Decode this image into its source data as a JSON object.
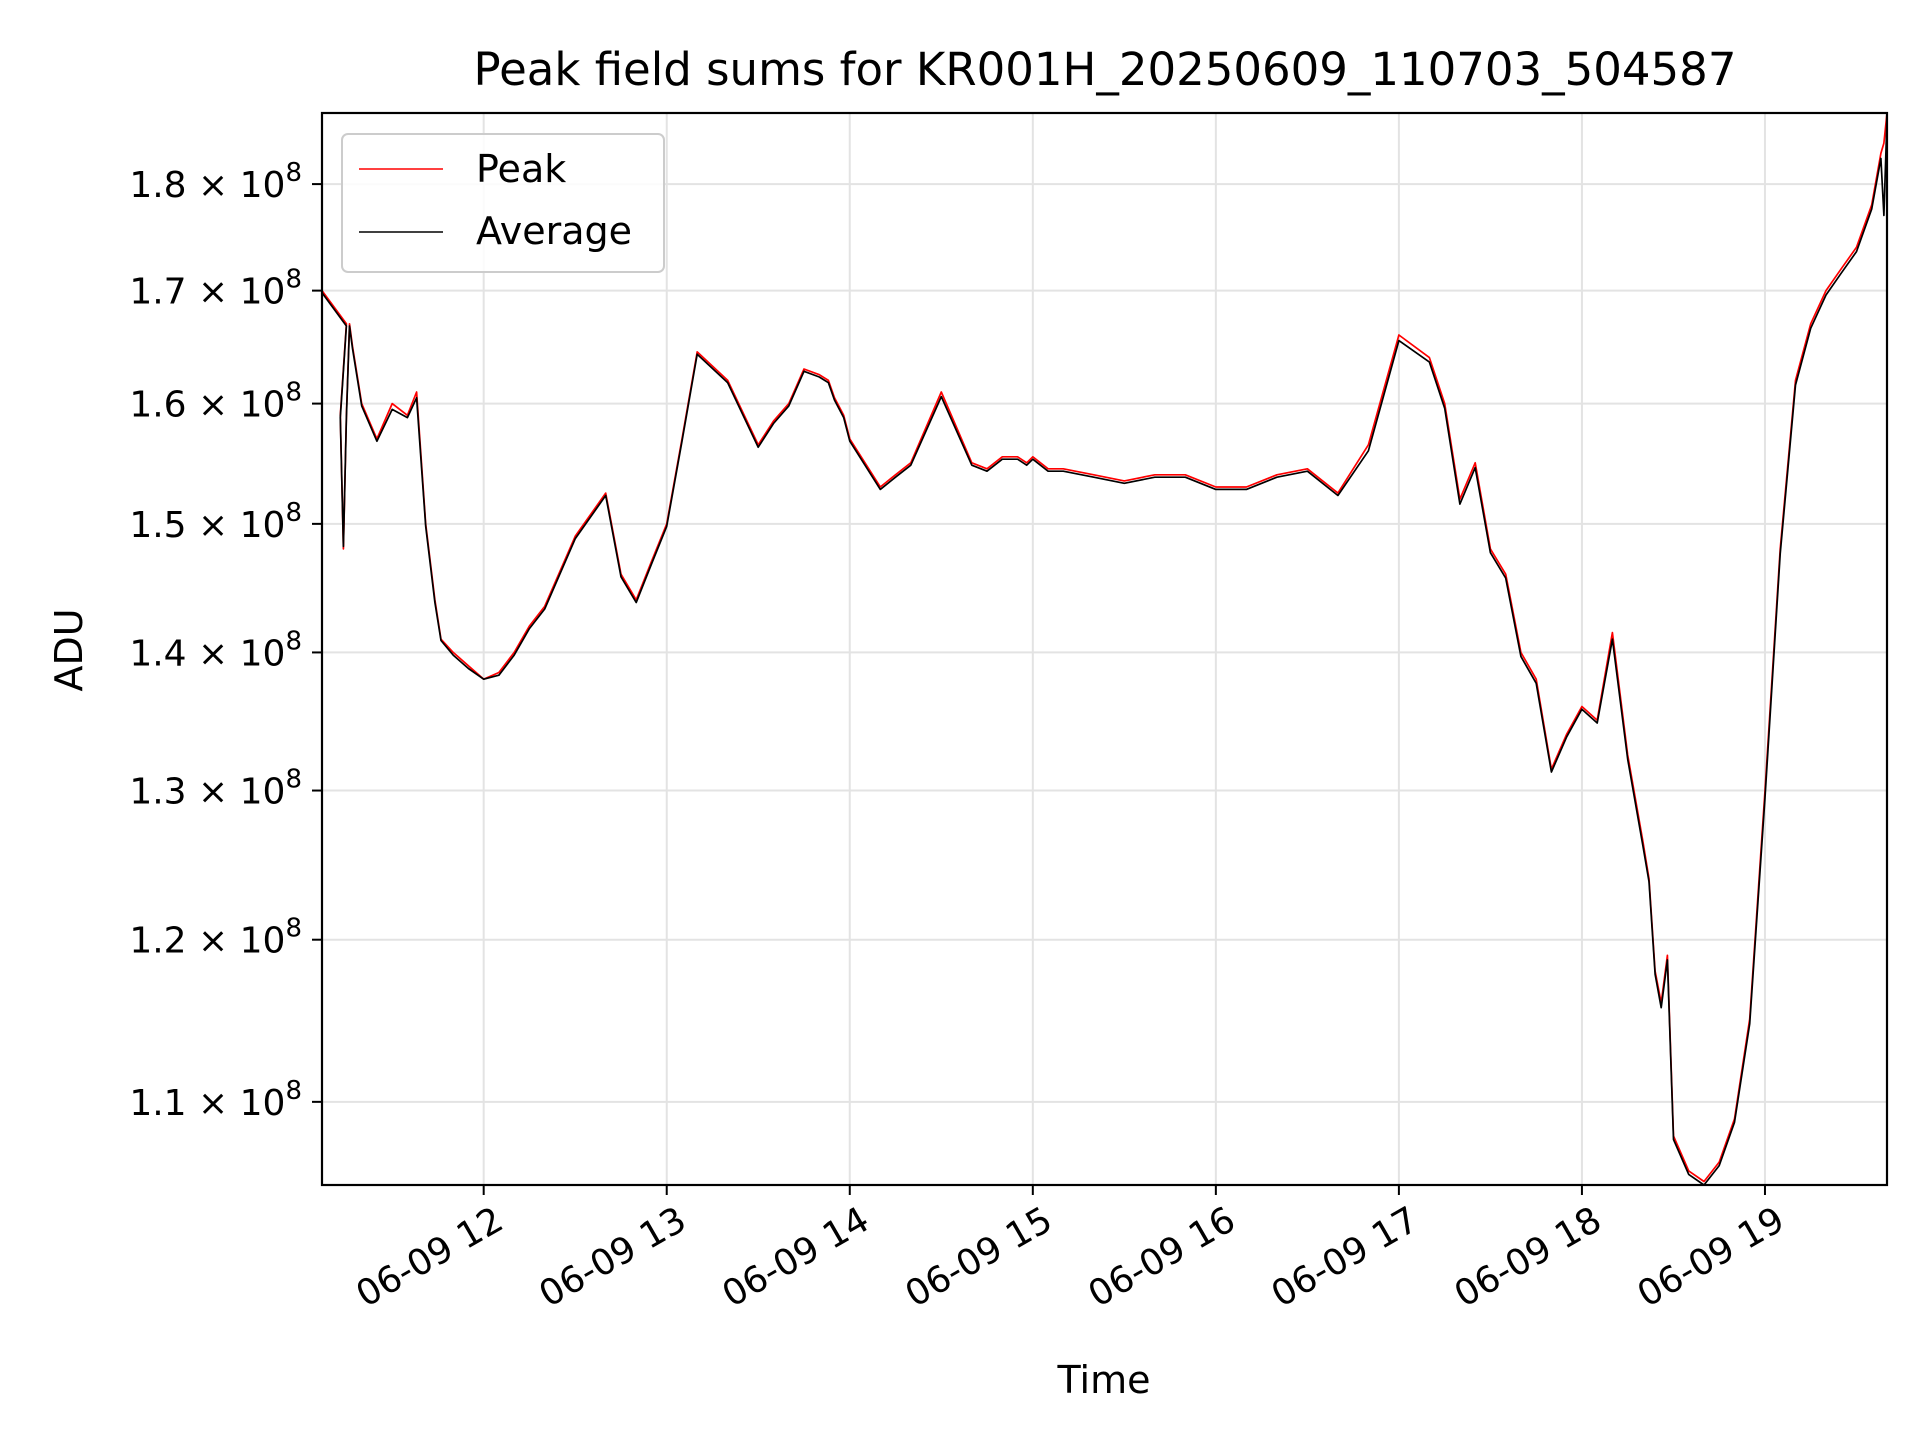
{
  "chart_data": {
    "type": "line",
    "title": "Peak field sums for KR001H_20250609_110703_504587",
    "xlabel": "Time",
    "ylabel": "ADU",
    "xlim": [
      "06-09 11:07",
      "06-09 19:40"
    ],
    "ylim": [
      105200000,
      187000000
    ],
    "yscale": "log",
    "grid": true,
    "legend": "upper left",
    "x_tick_labels": [
      "06-09 12",
      "06-09 13",
      "06-09 14",
      "06-09 15",
      "06-09 16",
      "06-09 17",
      "06-09 18",
      "06-09 19"
    ],
    "y_ticks": [
      {
        "value": 110000000,
        "mantissa": "1.1",
        "exponent": "8"
      },
      {
        "value": 120000000,
        "mantissa": "1.2",
        "exponent": "8"
      },
      {
        "value": 130000000,
        "mantissa": "1.3",
        "exponent": "8"
      },
      {
        "value": 140000000,
        "mantissa": "1.4",
        "exponent": "8"
      },
      {
        "value": 150000000,
        "mantissa": "1.5",
        "exponent": "8"
      },
      {
        "value": 160000000,
        "mantissa": "1.6",
        "exponent": "8"
      },
      {
        "value": 170000000,
        "mantissa": "1.7",
        "exponent": "8"
      },
      {
        "value": 180000000,
        "mantissa": "1.8",
        "exponent": "8"
      }
    ],
    "x": [
      "11:07",
      "11:15",
      "11:13",
      "11:14",
      "11:15",
      "11:16",
      "11:17",
      "11:20",
      "11:25",
      "11:30",
      "11:35",
      "11:38",
      "11:41",
      "11:44",
      "11:46",
      "11:50",
      "11:55",
      "12:00",
      "12:05",
      "12:10",
      "12:15",
      "12:20",
      "12:30",
      "12:40",
      "12:45",
      "12:50",
      "12:55",
      "13:00",
      "13:05",
      "13:10",
      "13:20",
      "13:30",
      "13:35",
      "13:40",
      "13:45",
      "13:50",
      "13:53",
      "13:55",
      "13:58",
      "14:00",
      "14:05",
      "14:10",
      "14:15",
      "14:20",
      "14:30",
      "14:40",
      "14:45",
      "14:50",
      "14:55",
      "14:58",
      "15:00",
      "15:05",
      "15:10",
      "15:20",
      "15:30",
      "15:40",
      "15:50",
      "16:00",
      "16:10",
      "16:20",
      "16:30",
      "16:40",
      "16:50",
      "17:00",
      "17:10",
      "17:15",
      "17:20",
      "17:25",
      "17:30",
      "17:35",
      "17:40",
      "17:45",
      "17:50",
      "17:55",
      "18:00",
      "18:05",
      "18:10",
      "18:15",
      "18:20",
      "18:22",
      "18:24",
      "18:26",
      "18:28",
      "18:30",
      "18:35",
      "18:40",
      "18:45",
      "18:50",
      "18:55",
      "19:00",
      "19:05",
      "19:10",
      "19:15",
      "19:20",
      "19:25",
      "19:30",
      "19:35",
      "19:38",
      "19:39",
      "19:40"
    ],
    "series": [
      {
        "name": "Peak",
        "color": "#ff0000",
        "values": [
          170000000,
          167000000,
          159000000,
          148000000,
          159000000,
          167000000,
          165000000,
          160000000,
          157000000,
          160000000,
          159000000,
          161000000,
          150000000,
          144000000,
          141000000,
          140000000,
          139000000,
          138000000,
          138500000,
          140000000,
          142000000,
          143500000,
          149000000,
          152500000,
          146000000,
          144000000,
          147000000,
          150000000,
          157000000,
          164500000,
          162000000,
          156500000,
          158500000,
          160000000,
          163000000,
          162500000,
          162000000,
          160500000,
          159000000,
          157000000,
          155000000,
          153000000,
          154000000,
          155000000,
          161000000,
          155000000,
          154500000,
          155500000,
          155500000,
          155000000,
          155500000,
          154500000,
          154500000,
          154000000,
          153500000,
          154000000,
          154000000,
          153000000,
          153000000,
          154000000,
          154500000,
          152500000,
          156500000,
          166000000,
          164000000,
          160000000,
          152000000,
          155000000,
          148000000,
          146000000,
          140000000,
          138000000,
          131500000,
          134000000,
          136000000,
          135000000,
          141500000,
          132500000,
          126500000,
          124000000,
          118000000,
          116000000,
          119000000,
          108000000,
          106000000,
          105400000,
          106500000,
          109000000,
          115000000,
          130000000,
          148000000,
          162000000,
          167000000,
          170000000,
          172000000,
          174000000,
          178000000,
          183000000,
          184000000,
          187000000
        ]
      },
      {
        "name": "Average",
        "color": "#000000",
        "values": [
          169800000,
          166800000,
          158800000,
          148200000,
          158800000,
          166800000,
          164800000,
          159800000,
          156800000,
          159500000,
          158800000,
          160500000,
          149800000,
          143800000,
          140900000,
          139800000,
          138800000,
          138000000,
          138300000,
          139800000,
          141800000,
          143300000,
          148800000,
          152300000,
          145800000,
          143800000,
          146800000,
          149800000,
          156800000,
          164300000,
          161800000,
          156300000,
          158300000,
          159800000,
          162800000,
          162300000,
          161800000,
          160300000,
          158800000,
          156800000,
          154800000,
          152800000,
          153800000,
          154800000,
          160600000,
          154800000,
          154300000,
          155300000,
          155300000,
          154800000,
          155300000,
          154300000,
          154300000,
          153800000,
          153300000,
          153800000,
          153800000,
          152800000,
          152800000,
          153800000,
          154300000,
          152300000,
          156000000,
          165500000,
          163600000,
          159600000,
          151600000,
          154600000,
          147700000,
          145700000,
          139700000,
          137700000,
          131300000,
          133800000,
          135800000,
          134800000,
          141000000,
          132200000,
          126200000,
          123800000,
          117800000,
          115700000,
          118700000,
          107800000,
          105800000,
          105200000,
          106300000,
          108800000,
          114700000,
          129500000,
          147600000,
          161600000,
          166600000,
          169600000,
          171600000,
          173600000,
          177600000,
          182500000,
          177000000,
          186500000
        ]
      }
    ]
  }
}
